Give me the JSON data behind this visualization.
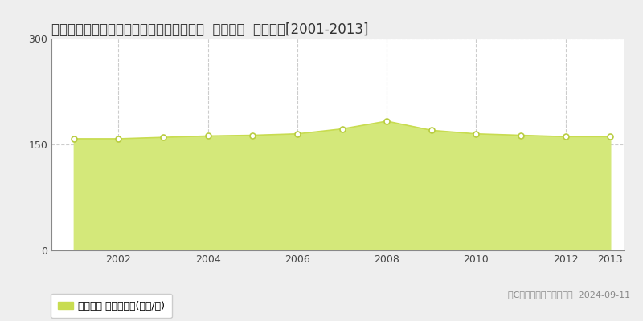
{
  "title": "東京都大田区田園調布２丁目２４番２６外  地価公示  地価推移[2001-2013]",
  "years": [
    2001,
    2002,
    2003,
    2004,
    2005,
    2006,
    2007,
    2008,
    2009,
    2010,
    2011,
    2012,
    2013
  ],
  "values": [
    158,
    158,
    160,
    162,
    163,
    165,
    172,
    183,
    170,
    165,
    163,
    161,
    161
  ],
  "ylim": [
    0,
    300
  ],
  "yticks": [
    0,
    150,
    300
  ],
  "xticks": [
    2002,
    2004,
    2006,
    2008,
    2010,
    2012,
    2013
  ],
  "vgrid_years": [
    2002,
    2004,
    2006,
    2008,
    2010,
    2012
  ],
  "line_color": "#c8dc50",
  "fill_color": "#d4e87a",
  "marker_face_color": "#ffffff",
  "marker_edge_color": "#b8cc40",
  "bg_color": "#eeeeee",
  "plot_bg_color": "#ffffff",
  "grid_color": "#cccccc",
  "legend_label": "地価公示 平均坪単価(万円/坪)",
  "legend_marker_color": "#c8dc50",
  "copyright_text": "（C）土地価格ドットコム  2024-09-11",
  "title_fontsize": 12,
  "tick_fontsize": 9,
  "legend_fontsize": 9,
  "copyright_fontsize": 8
}
